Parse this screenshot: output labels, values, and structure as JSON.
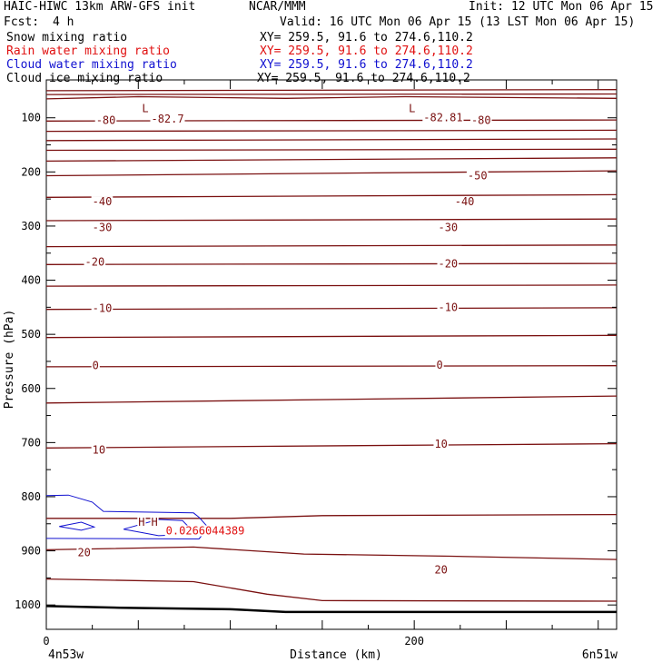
{
  "header": {
    "model": "HAIC-HIWC 13km ARW-GFS init",
    "org": "NCAR/MMM",
    "init": "Init: 12 UTC Mon 06 Apr 15",
    "fcst_label": "Fcst:",
    "fcst_value": "4 h",
    "valid": "Valid: 16 UTC Mon 06 Apr 15 (13 LST Mon 06 Apr 15)",
    "fields": [
      {
        "name": "Snow mixing ratio",
        "xy": "XY= 259.5, 91.6 to 274.6,110.2",
        "color": "#000000"
      },
      {
        "name": "Rain water mixing ratio",
        "xy": "XY= 259.5, 91.6 to 274.6,110.2",
        "color": "#e01010"
      },
      {
        "name": "Cloud water mixing ratio",
        "xy": "XY= 259.5, 91.6 to 274.6,110.2",
        "color": "#1010d0"
      },
      {
        "name": "Cloud ice mixing ratio",
        "xy": "XY= 259.5, 91.6 to 274.6,110.2",
        "color": "#000000"
      }
    ]
  },
  "chart_data": {
    "type": "line",
    "xlabel": "Distance (km)",
    "ylabel": "Pressure (hPa)",
    "xlim": [
      0,
      310
    ],
    "ylim": [
      1045,
      30
    ],
    "x_ticks": [
      0,
      200
    ],
    "y_ticks": [
      100,
      200,
      300,
      400,
      500,
      600,
      700,
      800,
      900,
      1000
    ],
    "x_endpoint_labels": [
      "4n53w",
      "6n51w"
    ],
    "temperature_contours": [
      {
        "points": [
          [
            0,
            50
          ],
          [
            310,
            48
          ]
        ]
      },
      {
        "points": [
          [
            0,
            57
          ],
          [
            310,
            56
          ]
        ]
      },
      {
        "points": [
          [
            0,
            65
          ],
          [
            50,
            61
          ],
          [
            130,
            64
          ],
          [
            195,
            61
          ],
          [
            310,
            64
          ]
        ]
      },
      {
        "points": [
          [
            0,
            106
          ],
          [
            310,
            104
          ]
        ]
      },
      {
        "points": [
          [
            0,
            125
          ],
          [
            310,
            123
          ]
        ]
      },
      {
        "points": [
          [
            0,
            142
          ],
          [
            310,
            139
          ]
        ]
      },
      {
        "points": [
          [
            0,
            160
          ],
          [
            310,
            158
          ]
        ]
      },
      {
        "points": [
          [
            0,
            180
          ],
          [
            310,
            174
          ]
        ]
      },
      {
        "points": [
          [
            0,
            207
          ],
          [
            310,
            198
          ]
        ]
      },
      {
        "points": [
          [
            0,
            247
          ],
          [
            310,
            242
          ]
        ]
      },
      {
        "points": [
          [
            0,
            290
          ],
          [
            310,
            287
          ]
        ]
      },
      {
        "points": [
          [
            0,
            338
          ],
          [
            310,
            335
          ]
        ]
      },
      {
        "points": [
          [
            0,
            371
          ],
          [
            310,
            369
          ]
        ]
      },
      {
        "points": [
          [
            0,
            411
          ],
          [
            310,
            409
          ]
        ]
      },
      {
        "points": [
          [
            0,
            454
          ],
          [
            310,
            451
          ]
        ]
      },
      {
        "points": [
          [
            0,
            506
          ],
          [
            310,
            502
          ]
        ]
      },
      {
        "points": [
          [
            0,
            560
          ],
          [
            310,
            558
          ]
        ]
      },
      {
        "points": [
          [
            0,
            627
          ],
          [
            310,
            614
          ]
        ]
      },
      {
        "points": [
          [
            0,
            710
          ],
          [
            310,
            702
          ]
        ]
      },
      {
        "points": [
          [
            0,
            840
          ],
          [
            100,
            840
          ],
          [
            150,
            835
          ],
          [
            310,
            833
          ]
        ]
      },
      {
        "points": [
          [
            0,
            898
          ],
          [
            80,
            893
          ],
          [
            140,
            906
          ],
          [
            220,
            910
          ],
          [
            310,
            916
          ]
        ]
      },
      {
        "points": [
          [
            0,
            952
          ],
          [
            80,
            957
          ],
          [
            120,
            980
          ],
          [
            150,
            992
          ],
          [
            310,
            993
          ]
        ]
      }
    ],
    "terrain": {
      "points": [
        [
          0,
          1002
        ],
        [
          40,
          1005
        ],
        [
          100,
          1008
        ],
        [
          130,
          1013
        ],
        [
          310,
          1013
        ]
      ]
    },
    "contour_labels": [
      {
        "text": "-80",
        "x": 27,
        "y": 105,
        "color": "#7a1010"
      },
      {
        "text": "-80",
        "x": 231,
        "y": 105,
        "color": "#7a1010"
      },
      {
        "text": "-82.7",
        "x": 57,
        "y": 102,
        "color": "#7a1010"
      },
      {
        "text": "-82.81",
        "x": 205,
        "y": 100,
        "color": "#7a1010"
      },
      {
        "text": "L",
        "x": 52,
        "y": 83,
        "color": "#7a1010"
      },
      {
        "text": "L",
        "x": 197,
        "y": 83,
        "color": "#7a1010"
      },
      {
        "text": "-50",
        "x": 229,
        "y": 207,
        "color": "#7a1010"
      },
      {
        "text": "-40",
        "x": 25,
        "y": 255,
        "color": "#7a1010"
      },
      {
        "text": "-40",
        "x": 222,
        "y": 255,
        "color": "#7a1010"
      },
      {
        "text": "-30",
        "x": 25,
        "y": 303,
        "color": "#7a1010"
      },
      {
        "text": "-30",
        "x": 213,
        "y": 303,
        "color": "#7a1010"
      },
      {
        "text": "-20",
        "x": 21,
        "y": 366,
        "color": "#7a1010"
      },
      {
        "text": "-20",
        "x": 213,
        "y": 370,
        "color": "#7a1010"
      },
      {
        "text": "-10",
        "x": 25,
        "y": 452,
        "color": "#7a1010"
      },
      {
        "text": "-10",
        "x": 213,
        "y": 450,
        "color": "#7a1010"
      },
      {
        "text": "0",
        "x": 25,
        "y": 558,
        "color": "#7a1010"
      },
      {
        "text": "0",
        "x": 212,
        "y": 557,
        "color": "#7a1010"
      },
      {
        "text": "10",
        "x": 25,
        "y": 714,
        "color": "#7a1010"
      },
      {
        "text": "10",
        "x": 211,
        "y": 703,
        "color": "#7a1010"
      },
      {
        "text": "20",
        "x": 17,
        "y": 903,
        "color": "#7a1010"
      },
      {
        "text": "20",
        "x": 211,
        "y": 935,
        "color": "#7a1010"
      },
      {
        "text": "H",
        "x": 50,
        "y": 847,
        "color": "#7a1010"
      },
      {
        "text": "H",
        "x": 57,
        "y": 847,
        "color": "#7a1010"
      },
      {
        "text": "0.0266044389",
        "x": 65,
        "y": 863,
        "color": "#e01010"
      }
    ],
    "cloud_water_contours": [
      {
        "points": [
          [
            0,
            798
          ],
          [
            12,
            797
          ],
          [
            25,
            810
          ],
          [
            31,
            827
          ],
          [
            80,
            830
          ],
          [
            83,
            838
          ],
          [
            88,
            857
          ],
          [
            83,
            878
          ],
          [
            0,
            877
          ]
        ]
      },
      {
        "points": [
          [
            7,
            855
          ],
          [
            19,
            847
          ],
          [
            26,
            856
          ],
          [
            19,
            862
          ],
          [
            7,
            855
          ]
        ]
      },
      {
        "points": [
          [
            42,
            860
          ],
          [
            61,
            842
          ],
          [
            74,
            844
          ],
          [
            78,
            858
          ],
          [
            74,
            870
          ],
          [
            61,
            872
          ],
          [
            42,
            860
          ]
        ]
      }
    ]
  }
}
